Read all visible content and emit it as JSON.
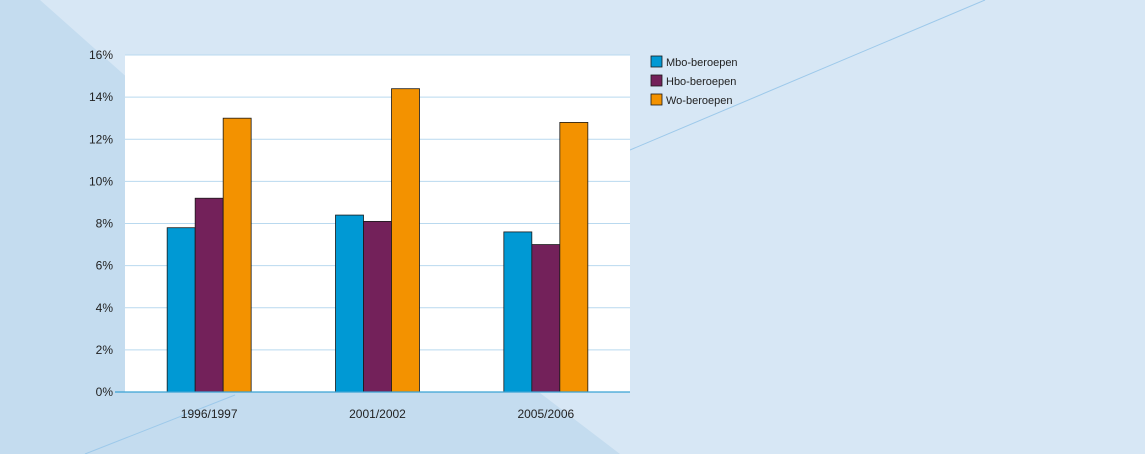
{
  "colors": {
    "background": "#d7e7f5",
    "background_shade": "#c4dcef",
    "decor_line": "#9dc9ea",
    "plot_background": "#ffffff",
    "gridline": "#b9d9ef",
    "axis": "#3aa3d4",
    "bar_stroke": "#1a1a1a"
  },
  "chart_data": {
    "type": "bar",
    "categories": [
      "1996/1997",
      "2001/2002",
      "2005/2006"
    ],
    "series": [
      {
        "name": "Mbo-beroepen",
        "color": "#0099d4",
        "values": [
          7.8,
          8.4,
          7.6
        ]
      },
      {
        "name": "Hbo-beroepen",
        "color": "#73215a",
        "values": [
          9.2,
          8.1,
          7.0
        ]
      },
      {
        "name": "Wo-beroepen",
        "color": "#f39200",
        "values": [
          13.0,
          14.4,
          12.8
        ]
      }
    ],
    "ylim": [
      0,
      16
    ],
    "yticks": [
      0,
      2,
      4,
      6,
      8,
      10,
      12,
      14,
      16
    ],
    "ytick_labels": [
      "0%",
      "2%",
      "4%",
      "6%",
      "8%",
      "10%",
      "12%",
      "14%",
      "16%"
    ],
    "grid": true,
    "legend_position": "top-right"
  }
}
